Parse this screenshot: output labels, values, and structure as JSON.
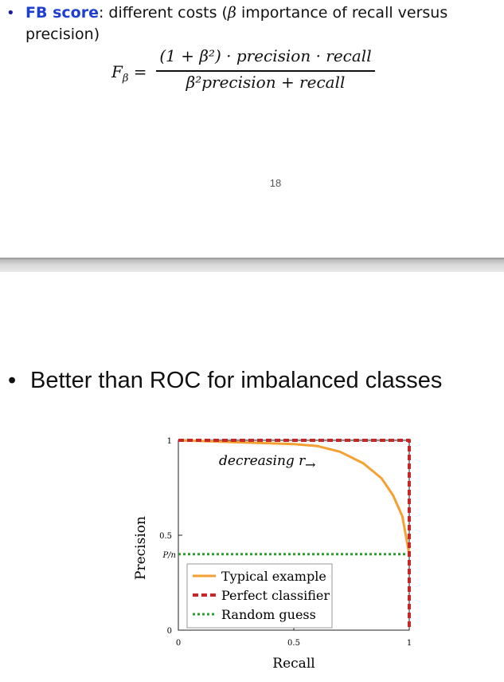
{
  "top_slide": {
    "bullet": {
      "term": "FB score",
      "text_before_symbol": ": different costs (",
      "symbol": "β",
      "text_after_symbol": " importance of recall versus precision)"
    },
    "formula": {
      "lhs": "F",
      "lhs_sub": "β",
      "equals": "=",
      "numerator": "(1 + β²) · precision · recall",
      "denominator": "β²precision + recall"
    },
    "page_number": "18"
  },
  "bottom_slide": {
    "bullet_text": "Better than ROC for imbalanced classes"
  },
  "chart_data": {
    "type": "line",
    "xlabel": "Recall",
    "ylabel": "Precision",
    "xlim": [
      0,
      1
    ],
    "ylim": [
      0,
      1
    ],
    "x_ticks": [
      "0",
      "0.5",
      "1"
    ],
    "y_ticks": [
      "0",
      "0.5",
      "1"
    ],
    "y_special_tick": {
      "label": "P/n",
      "value": 0.4
    },
    "annotation": "decreasing r",
    "annotation_arrow": "→",
    "legend_position": "bottom-left",
    "series": [
      {
        "name": "Typical example",
        "style": "solid",
        "color": "#f5a033",
        "x": [
          0,
          0.25,
          0.5,
          0.6,
          0.7,
          0.8,
          0.88,
          0.93,
          0.97,
          1.0
        ],
        "y": [
          1,
          0.99,
          0.98,
          0.97,
          0.94,
          0.88,
          0.8,
          0.71,
          0.6,
          0.4
        ]
      },
      {
        "name": "Perfect classifier",
        "style": "dashed",
        "color": "#c62828",
        "x": [
          0,
          1,
          1
        ],
        "y": [
          1,
          1,
          0
        ]
      },
      {
        "name": "Random guess",
        "style": "dotted",
        "color": "#2e9e2e",
        "x": [
          0,
          1
        ],
        "y": [
          0.4,
          0.4
        ]
      }
    ]
  }
}
